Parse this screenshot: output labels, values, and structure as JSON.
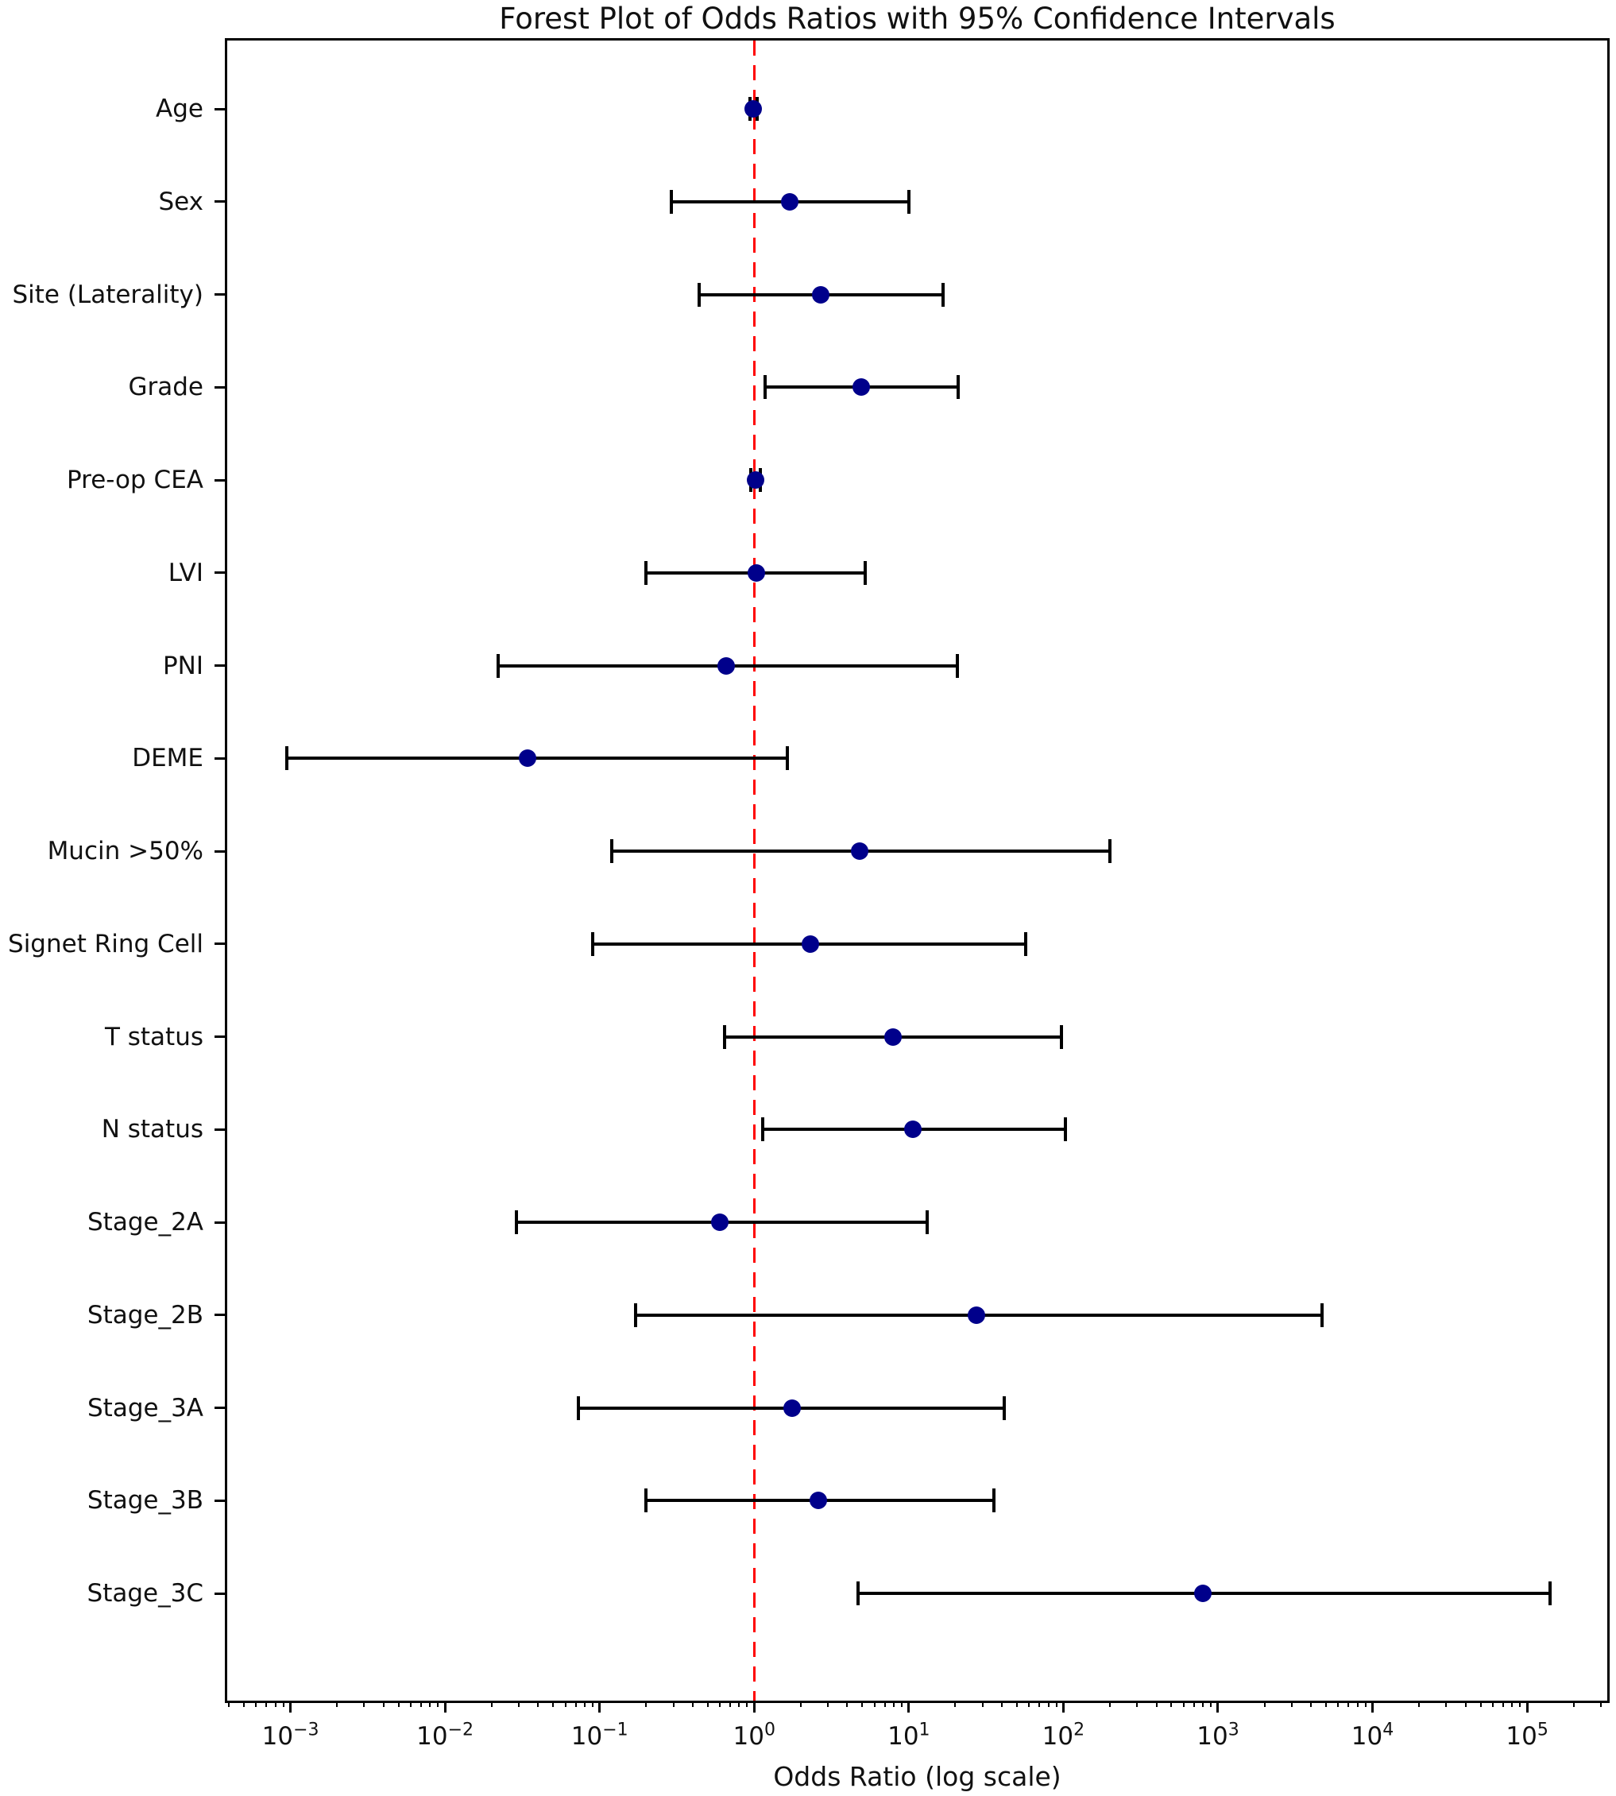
{
  "title": "Forest Plot of Odds Ratios with 95% Confidence Intervals",
  "xlabel": "Odds Ratio (log scale)",
  "chart_data": {
    "type": "scatter",
    "subtype": "forest-plot-with-error-bars",
    "orientation": "horizontal",
    "xscale": "log",
    "xlim": [
      0.00039,
      330000
    ],
    "x_major_tick_exponents": [
      -3,
      -2,
      -1,
      0,
      1,
      2,
      3,
      4,
      5
    ],
    "reference_line_x": 1.0,
    "reference_line_style": "dashed",
    "reference_line_color": "#ff0000",
    "marker_color": "#00008b",
    "errorbar_color": "#000000",
    "grid": false,
    "legend": "none",
    "categories": [
      "Age",
      "Sex",
      "Site (Laterality)",
      "Grade",
      "Pre-op CEA",
      "LVI",
      "PNI",
      "DEME",
      "Mucin >50%",
      "Signet Ring Cell",
      "T status",
      "N status",
      "Stage_2A",
      "Stage_2B",
      "Stage_3A",
      "Stage_3B",
      "Stage_3C"
    ],
    "rows": [
      {
        "label": "Age",
        "or": 0.98,
        "ci_low": 0.94,
        "ci_high": 1.05
      },
      {
        "label": "Sex",
        "or": 1.7,
        "ci_low": 0.29,
        "ci_high": 10.0
      },
      {
        "label": "Site (Laterality)",
        "or": 2.7,
        "ci_low": 0.44,
        "ci_high": 16.6
      },
      {
        "label": "Grade",
        "or": 4.9,
        "ci_low": 1.17,
        "ci_high": 20.9
      },
      {
        "label": "Pre-op CEA",
        "or": 1.02,
        "ci_low": 0.95,
        "ci_high": 1.09
      },
      {
        "label": "LVI",
        "or": 1.03,
        "ci_low": 0.2,
        "ci_high": 5.2
      },
      {
        "label": "PNI",
        "or": 0.66,
        "ci_low": 0.022,
        "ci_high": 20.6
      },
      {
        "label": "DEME",
        "or": 0.034,
        "ci_low": 0.00095,
        "ci_high": 1.64
      },
      {
        "label": "Mucin >50%",
        "or": 4.8,
        "ci_low": 0.12,
        "ci_high": 200
      },
      {
        "label": "Signet Ring Cell",
        "or": 2.3,
        "ci_low": 0.09,
        "ci_high": 57
      },
      {
        "label": "T status",
        "or": 7.9,
        "ci_low": 0.64,
        "ci_high": 97
      },
      {
        "label": "N status",
        "or": 10.6,
        "ci_low": 1.13,
        "ci_high": 103
      },
      {
        "label": "Stage_2A",
        "or": 0.6,
        "ci_low": 0.029,
        "ci_high": 13.1
      },
      {
        "label": "Stage_2B",
        "or": 27.5,
        "ci_low": 0.17,
        "ci_high": 4700
      },
      {
        "label": "Stage_3A",
        "or": 1.76,
        "ci_low": 0.073,
        "ci_high": 41.5
      },
      {
        "label": "Stage_3B",
        "or": 2.6,
        "ci_low": 0.2,
        "ci_high": 35.6
      },
      {
        "label": "Stage_3C",
        "or": 800,
        "ci_low": 4.7,
        "ci_high": 140000
      }
    ]
  }
}
